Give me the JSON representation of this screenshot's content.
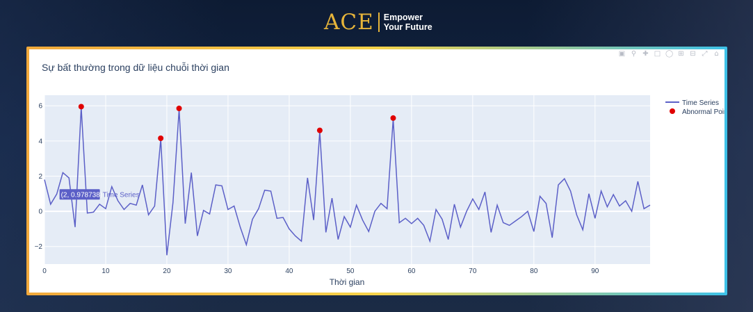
{
  "brand": {
    "logo": "ACE",
    "tagline_line1": "Empower",
    "tagline_line2": "Your Future"
  },
  "modebar": {
    "icons": [
      "camera-icon",
      "zoom-icon",
      "pan-icon",
      "box-select-icon",
      "lasso-icon",
      "zoom-in-icon",
      "zoom-out-icon",
      "autoscale-icon",
      "home-icon"
    ]
  },
  "hover": {
    "label": "(2, 0.978738)",
    "series": "Time Series",
    "x": 2,
    "y": 0.978738
  },
  "chart_data": {
    "type": "line",
    "title": "Sự bất thường trong dữ liệu chuỗi thời gian",
    "xlabel": "Thời gian",
    "ylabel": "",
    "xlim": [
      0,
      99
    ],
    "ylim": [
      -3,
      6.6
    ],
    "xticks": [
      0,
      10,
      20,
      30,
      40,
      50,
      60,
      70,
      80,
      90
    ],
    "yticks": [
      -2,
      0,
      2,
      4,
      6
    ],
    "grid": true,
    "legend_position": "right",
    "colors": {
      "line": "#5b5fc7",
      "anomaly": "#e00000",
      "plot_bg": "#e5ecf6",
      "grid": "#ffffff"
    },
    "series": [
      {
        "name": "Time Series",
        "type": "line",
        "x": [
          0,
          1,
          2,
          3,
          4,
          5,
          6,
          7,
          8,
          9,
          10,
          11,
          12,
          13,
          14,
          15,
          16,
          17,
          18,
          19,
          20,
          21,
          22,
          23,
          24,
          25,
          26,
          27,
          28,
          29,
          30,
          31,
          32,
          33,
          34,
          35,
          36,
          37,
          38,
          39,
          40,
          41,
          42,
          43,
          44,
          45,
          46,
          47,
          48,
          49,
          50,
          51,
          52,
          53,
          54,
          55,
          56,
          57,
          58,
          59,
          60,
          61,
          62,
          63,
          64,
          65,
          66,
          67,
          68,
          69,
          70,
          71,
          72,
          73,
          74,
          75,
          76,
          77,
          78,
          79,
          80,
          81,
          82,
          83,
          84,
          85,
          86,
          87,
          88,
          89,
          90,
          91,
          92,
          93,
          94,
          95,
          96,
          97,
          98,
          99
        ],
        "y": [
          1.8,
          0.4,
          0.98,
          2.2,
          1.9,
          -0.9,
          5.9,
          -0.1,
          -0.05,
          0.4,
          0.15,
          1.4,
          0.6,
          0.1,
          0.45,
          0.35,
          1.5,
          -0.2,
          0.3,
          4.1,
          -2.5,
          0.5,
          5.8,
          -0.7,
          2.2,
          -1.4,
          0.05,
          -0.15,
          1.5,
          1.45,
          0.1,
          0.3,
          -0.9,
          -1.9,
          -0.45,
          0.15,
          1.2,
          1.15,
          -0.4,
          -0.35,
          -1.0,
          -1.4,
          -1.7,
          1.9,
          -0.5,
          4.55,
          -1.2,
          0.75,
          -1.6,
          -0.3,
          -0.9,
          0.35,
          -0.5,
          -1.15,
          0.0,
          0.45,
          0.15,
          5.25,
          -0.65,
          -0.4,
          -0.7,
          -0.4,
          -0.8,
          -1.7,
          0.1,
          -0.45,
          -1.6,
          0.4,
          -0.9,
          0.0,
          0.7,
          0.1,
          1.1,
          -1.2,
          0.35,
          -0.65,
          -0.8,
          -0.55,
          -0.3,
          0.0,
          -1.15,
          0.85,
          0.45,
          -1.5,
          1.5,
          1.85,
          1.15,
          -0.2,
          -1.05,
          1.0,
          -0.4,
          1.15,
          0.25,
          0.95,
          0.3,
          0.6,
          0.0,
          1.7,
          0.15,
          0.35
        ]
      },
      {
        "name": "Abnormal Points",
        "type": "scatter",
        "x": [
          6,
          19,
          22,
          45,
          57
        ],
        "y": [
          5.95,
          4.15,
          5.85,
          4.6,
          5.3
        ]
      }
    ]
  }
}
